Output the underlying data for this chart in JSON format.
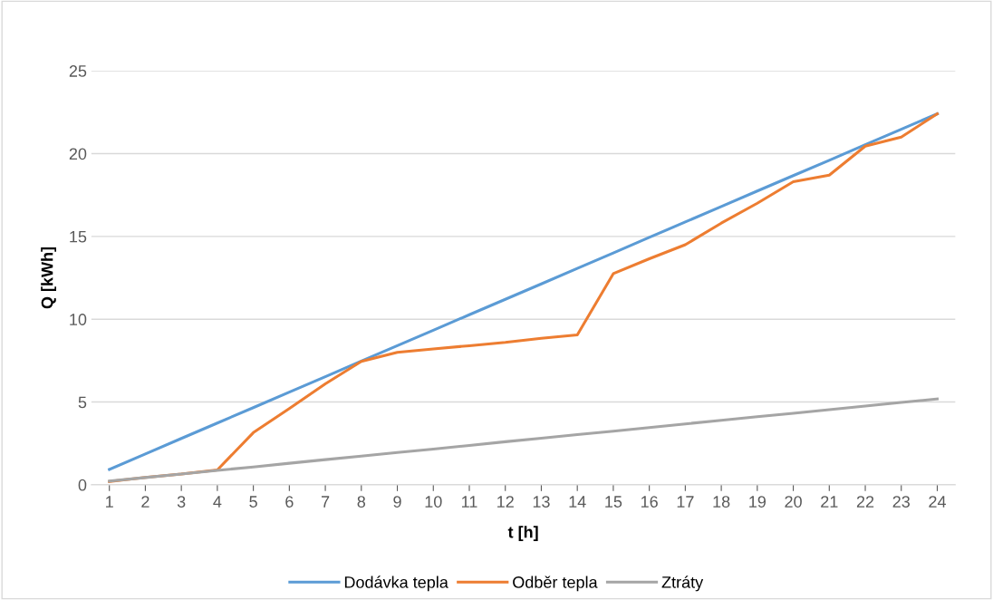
{
  "chart_data": {
    "type": "line",
    "xlabel": "t [h]",
    "ylabel": "Q [kWh]",
    "categories": [
      "1",
      "2",
      "3",
      "4",
      "5",
      "6",
      "7",
      "8",
      "9",
      "10",
      "11",
      "12",
      "13",
      "14",
      "15",
      "16",
      "17",
      "18",
      "19",
      "20",
      "21",
      "22",
      "23",
      "24"
    ],
    "series": [
      {
        "name": "Dodávka tepla",
        "color": "#5b9bd5",
        "values": [
          0.93,
          1.86,
          2.8,
          3.73,
          4.66,
          5.6,
          6.53,
          7.47,
          8.4,
          9.33,
          10.27,
          11.2,
          12.13,
          13.07,
          14.0,
          14.94,
          15.87,
          16.8,
          17.74,
          18.67,
          19.6,
          20.54,
          21.47,
          22.4
        ]
      },
      {
        "name": "Odběr tepla",
        "color": "#ed7d31",
        "values": [
          0.2,
          0.45,
          0.65,
          0.9,
          3.15,
          4.6,
          6.1,
          7.45,
          8.0,
          8.2,
          8.4,
          8.6,
          8.85,
          9.05,
          12.75,
          13.65,
          14.5,
          15.8,
          17.0,
          18.3,
          18.7,
          20.45,
          21.0,
          22.4
        ]
      },
      {
        "name": "Ztráty",
        "color": "#a5a5a5",
        "values": [
          0.22,
          0.44,
          0.65,
          0.87,
          1.08,
          1.3,
          1.52,
          1.73,
          1.95,
          2.16,
          2.38,
          2.6,
          2.81,
          3.03,
          3.24,
          3.46,
          3.68,
          3.89,
          4.11,
          4.32,
          4.54,
          4.76,
          4.97,
          5.19
        ]
      }
    ],
    "ylim": [
      0,
      25
    ],
    "yticks": [
      0,
      5,
      10,
      15,
      20,
      25
    ],
    "grid": "y",
    "legend": "bottom",
    "marker": "none",
    "line_style": "solid"
  }
}
